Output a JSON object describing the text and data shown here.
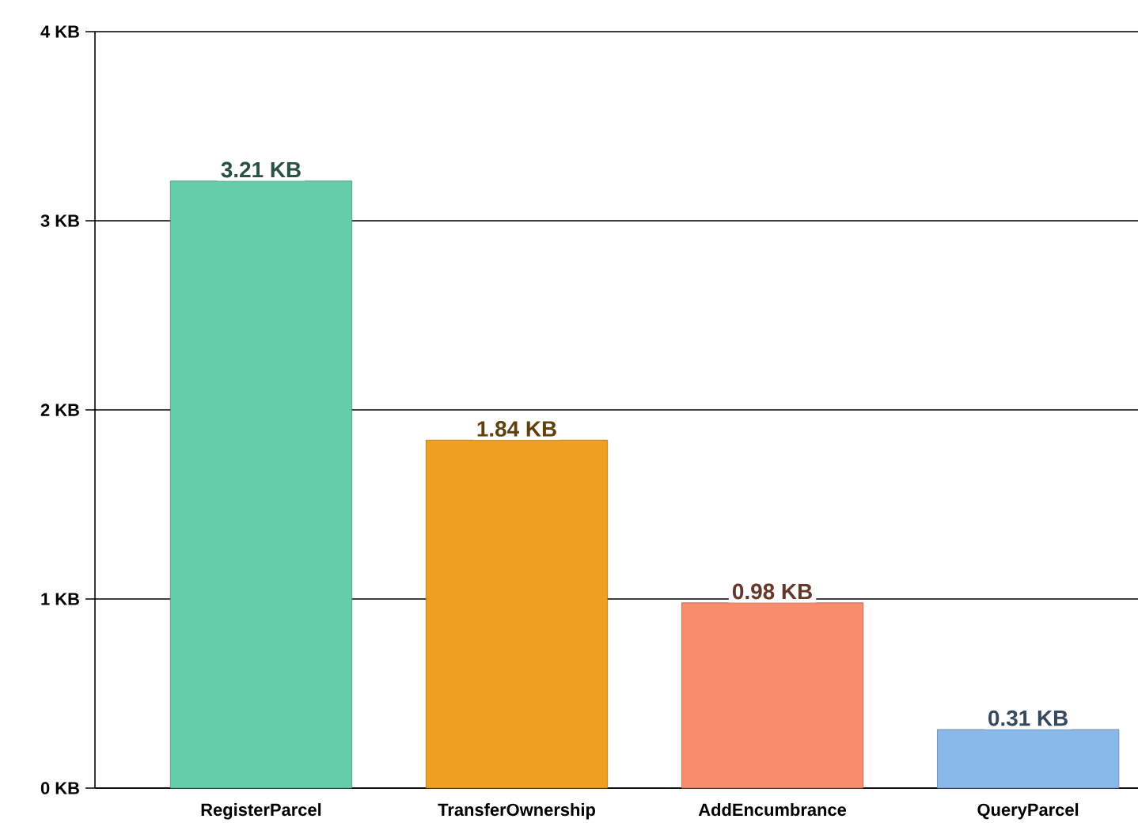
{
  "chart_data": {
    "type": "bar",
    "categories": [
      "RegisterParcel",
      "TransferOwnership",
      "AddEncumbrance",
      "QueryParcel"
    ],
    "values": [
      3.21,
      1.84,
      0.98,
      0.31
    ],
    "value_labels": [
      "3.21 KB",
      "1.84 KB",
      "0.98 KB",
      "0.31 KB"
    ],
    "colors": [
      "#66cdaa",
      "#f0a020",
      "#fa8c6e",
      "#8ab8e8"
    ],
    "ylim": [
      0,
      4
    ],
    "yticks": [
      {
        "value": 0,
        "label": "0 KB"
      },
      {
        "value": 1,
        "label": "1 KB"
      },
      {
        "value": 2,
        "label": "2 KB"
      },
      {
        "value": 3,
        "label": "3 KB"
      },
      {
        "value": 4,
        "label": "4 KB"
      }
    ],
    "grid": "y"
  }
}
